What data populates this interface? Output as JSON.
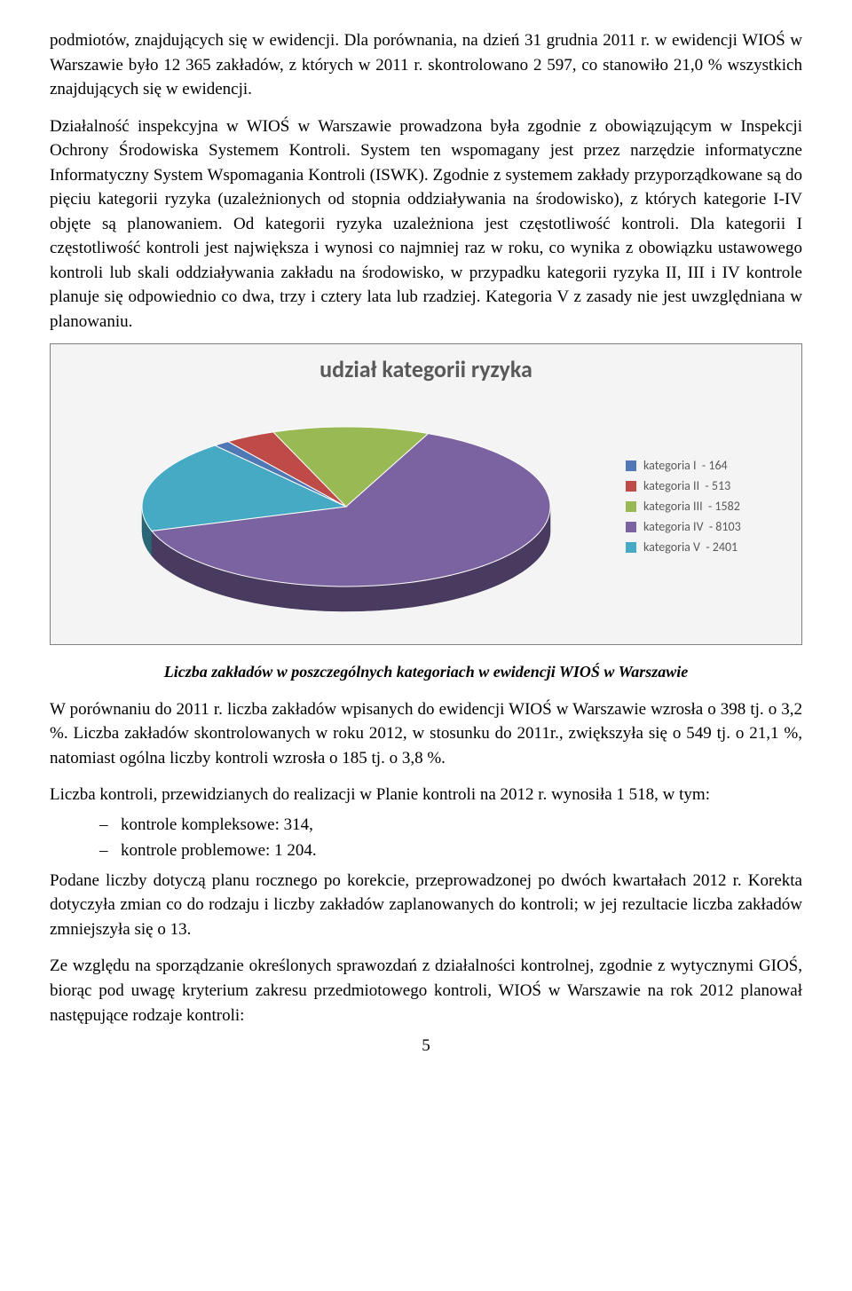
{
  "paragraph1": "podmiotów, znajdujących się w ewidencji. Dla porównania, na dzień 31 grudnia 2011 r. w ewidencji WIOŚ w Warszawie było 12 365 zakładów, z których w 2011 r. skontrolowano 2 597, co stanowiło 21,0 % wszystkich znajdujących się w ewidencji.",
  "paragraph2": "Działalność inspekcyjna w WIOŚ w Warszawie prowadzona była zgodnie z obowiązującym w Inspekcji Ochrony Środowiska Systemem Kontroli. System ten wspomagany jest przez narzędzie informatyczne Informatyczny System Wspomagania Kontroli (ISWK). Zgodnie z systemem zakłady przyporządkowane są do pięciu kategorii ryzyka (uzależnionych od stopnia oddziaływania na środowisko), z których kategorie I-IV objęte są planowaniem. Od kategorii ryzyka uzależniona jest częstotliwość kontroli. Dla kategorii I częstotliwość kontroli jest największa i wynosi  co najmniej raz w roku, co wynika z obowiązku ustawowego kontroli lub skali oddziaływania zakładu na środowisko, w przypadku kategorii ryzyka II, III i IV kontrole planuje się odpowiednio co dwa, trzy i cztery lata lub rzadziej. Kategoria V z zasady nie jest uwzględniana w planowaniu.",
  "chart": {
    "title": "udział kategorii ryzyka",
    "title_fontsize": 26,
    "title_color": "#595959",
    "background_color": "#f4f4f4",
    "border_color": "#808080",
    "type": "pie-3d",
    "legend_font": "Calibri",
    "legend_fontsize": 14,
    "legend_color": "#595959",
    "series": [
      {
        "label": "kategoria I",
        "value": 164,
        "color": "#5078b4"
      },
      {
        "label": "kategoria II",
        "value": 513,
        "color": "#be4b48"
      },
      {
        "label": "kategoria III",
        "value": 1582,
        "color": "#98b954"
      },
      {
        "label": "kategoria IV",
        "value": 8103,
        "color": "#7a63a0"
      },
      {
        "label": "kategoria V",
        "value": 2401,
        "color": "#46aac5"
      }
    ]
  },
  "caption": "Liczba zakładów w poszczególnych kategoriach w ewidencji WIOŚ w Warszawie",
  "paragraph3": "W porównaniu do 2011 r. liczba zakładów wpisanych do ewidencji WIOŚ w Warszawie wzrosła o 398 tj. o 3,2 %. Liczba zakładów skontrolowanych w roku 2012, w stosunku do 2011r., zwiększyła się o 549 tj. o 21,1 %, natomiast ogólna liczby kontroli wzrosła o 185 tj. o 3,8 %.",
  "paragraph4_lead": "Liczba kontroli, przewidzianych do realizacji w Planie kontroli na 2012 r. wynosiła  1 518, w tym:",
  "bullets": [
    "kontrole kompleksowe:  314,",
    "kontrole problemowe:  1 204."
  ],
  "paragraph5": "Podane liczby dotyczą planu rocznego po korekcie, przeprowadzonej po dwóch kwartałach 2012 r. Korekta dotyczyła zmian co do rodzaju i liczby zakładów zaplanowanych do kontroli; w jej rezultacie liczba zakładów zmniejszyła się o 13.",
  "paragraph6": "Ze względu na sporządzanie określonych sprawozdań z działalności kontrolnej, zgodnie z wytycznymi GIOŚ, biorąc pod uwagę kryterium zakresu przedmiotowego kontroli, WIOŚ w Warszawie na rok 2012 planował następujące rodzaje kontroli:",
  "page_number": "5"
}
